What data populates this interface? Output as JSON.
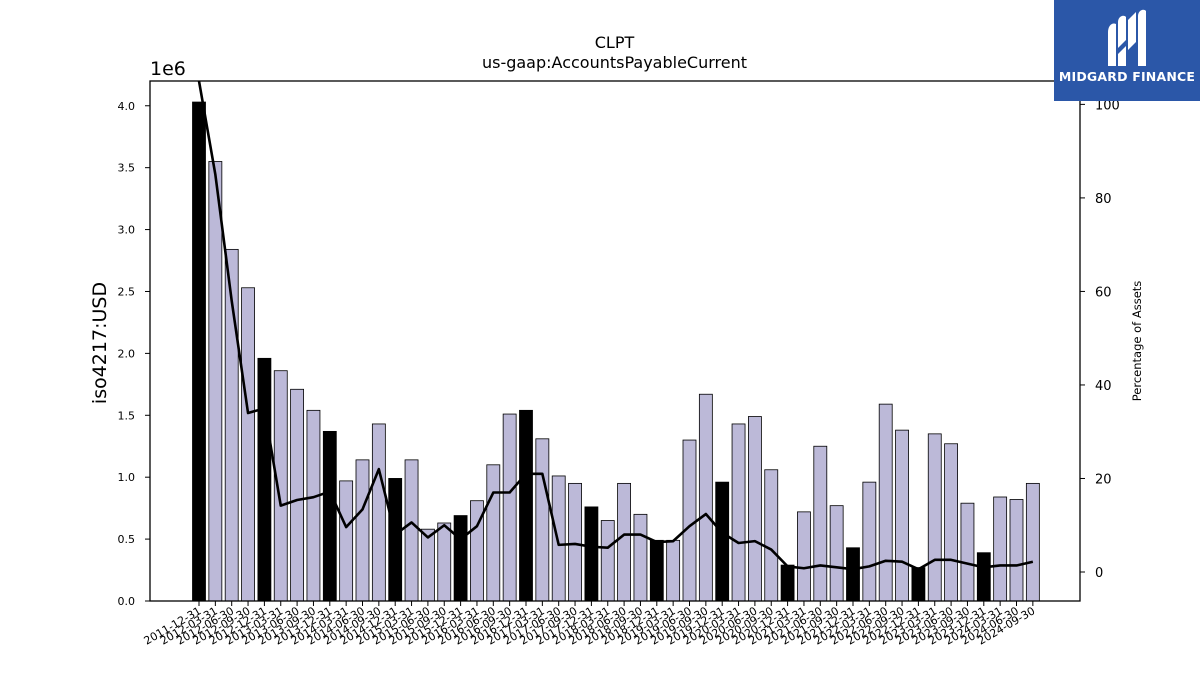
{
  "chart_data": {
    "type": "bar",
    "title": "CLPT",
    "subtitle": "us-gaap:AccountsPayableCurrent",
    "ylabel": "iso4217:USD",
    "ylabel_right": "Percentage of Assets",
    "y_offset_label": "1e6",
    "ylim": [
      0,
      4200000
    ],
    "ylim_right": [
      -6.2,
      105
    ],
    "yticks": [
      0,
      500000,
      1000000,
      1500000,
      2000000,
      2500000,
      3000000,
      3500000,
      4000000
    ],
    "ytick_labels": [
      "0.0",
      "0.5",
      "1.0",
      "1.5",
      "2.0",
      "2.5",
      "3.0",
      "3.5",
      "4.0"
    ],
    "yticks_right": [
      0,
      20,
      40,
      60,
      80,
      100
    ],
    "ytick_labels_right": [
      "0",
      "20",
      "40",
      "60",
      "80",
      "100"
    ],
    "categories": [
      "2011-12-31",
      "2012-03-31",
      "2012-06-30",
      "2012-09-30",
      "2012-12-31",
      "2013-03-31",
      "2013-06-30",
      "2013-09-30",
      "2013-12-31",
      "2014-03-31",
      "2014-06-30",
      "2014-09-30",
      "2014-12-31",
      "2015-03-31",
      "2015-06-30",
      "2015-09-30",
      "2015-12-31",
      "2016-03-31",
      "2016-06-30",
      "2016-09-30",
      "2016-12-31",
      "2017-03-31",
      "2017-06-30",
      "2017-09-30",
      "2017-12-31",
      "2018-03-31",
      "2018-06-30",
      "2018-09-30",
      "2018-12-31",
      "2019-03-31",
      "2019-06-30",
      "2019-09-30",
      "2019-12-31",
      "2020-03-31",
      "2020-06-30",
      "2020-09-30",
      "2020-12-31",
      "2021-03-31",
      "2021-06-30",
      "2021-09-30",
      "2021-12-31",
      "2022-03-31",
      "2022-06-30",
      "2022-09-30",
      "2022-12-31",
      "2023-03-31",
      "2023-06-30",
      "2023-09-30",
      "2023-12-31",
      "2024-03-31",
      "2024-06-30",
      "2024-09-30"
    ],
    "series": [
      {
        "name": "",
        "kind": "bar",
        "axis": "left",
        "values": [
          4030000,
          3550000,
          2840000,
          2530000,
          1960000,
          1860000,
          1710000,
          1540000,
          1370000,
          970000,
          1140000,
          1430000,
          990000,
          1140000,
          580000,
          630000,
          690000,
          810000,
          1100000,
          1510000,
          1540000,
          1310000,
          1010000,
          950000,
          760000,
          650000,
          950000,
          700000,
          490000,
          490000,
          1300000,
          1670000,
          960000,
          1430000,
          1490000,
          1060000,
          290000,
          720000,
          1250000,
          770000,
          430000,
          960000,
          1590000,
          1380000,
          270000,
          1350000,
          1270000,
          790000,
          390000,
          840000,
          820000,
          950000
        ],
        "year_end_color": "#000000",
        "quarter_color": "#bcb9d8"
      },
      {
        "name": "",
        "kind": "line",
        "axis": "right",
        "color": "#000000",
        "values": [
          105,
          85,
          58,
          34,
          35,
          14.2,
          15.4,
          16,
          17.2,
          9.6,
          13.4,
          22,
          8,
          10.6,
          7.4,
          10,
          7,
          9.8,
          17,
          17,
          21,
          21,
          5.8,
          6,
          5.4,
          5.2,
          8,
          8,
          6.4,
          6.6,
          9.8,
          12.4,
          8.4,
          6.2,
          6.6,
          4.8,
          1.2,
          0.8,
          1.4,
          1,
          0.6,
          1.2,
          2.4,
          2.2,
          0.6,
          2.6,
          2.6,
          1.8,
          1,
          1.4,
          1.4,
          2.2
        ]
      }
    ],
    "grid": false,
    "legend": "none"
  },
  "logo": {
    "name": "MIDGARD FINANCE",
    "icon": "midgard-logo-icon",
    "background": "#2b57a8"
  }
}
